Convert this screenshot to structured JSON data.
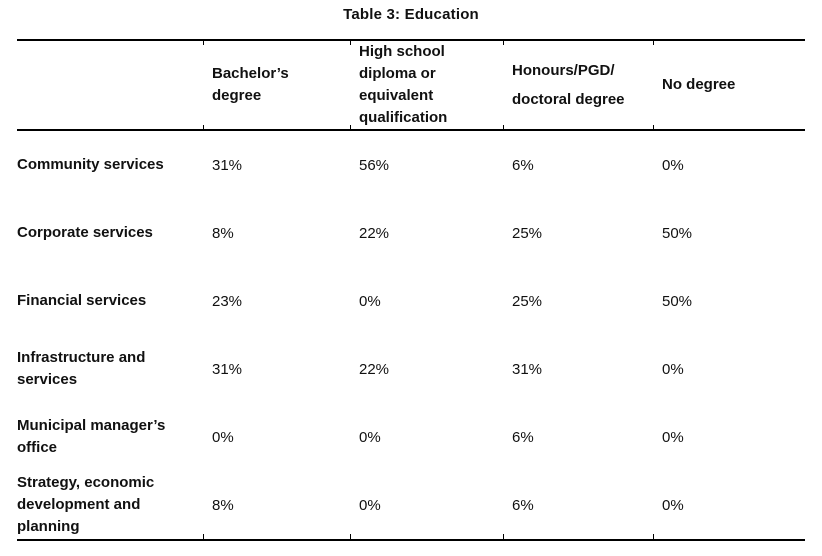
{
  "title": "Table 3: Education",
  "table": {
    "header": [
      {
        "id": "department",
        "lines": []
      },
      {
        "id": "bachelors-degree",
        "lines": [
          "Bachelor’s",
          "degree"
        ]
      },
      {
        "id": "high-school-diploma",
        "lines": [
          "High school",
          "diploma or",
          "equivalent",
          "qualification"
        ]
      },
      {
        "id": "honours-pgd-doctoral",
        "lines": [
          "Honours/PGD/",
          "doctoral degree"
        ]
      },
      {
        "id": "no-degree",
        "lines": [
          "No degree"
        ]
      }
    ],
    "rows": [
      {
        "label_lines": [
          "Community services"
        ],
        "values": [
          "31%",
          "56%",
          "6%",
          "0%"
        ]
      },
      {
        "label_lines": [
          "Corporate services"
        ],
        "values": [
          "8%",
          "22%",
          "25%",
          "50%"
        ]
      },
      {
        "label_lines": [
          "Financial services"
        ],
        "values": [
          "23%",
          "0%",
          "25%",
          "50%"
        ]
      },
      {
        "label_lines": [
          "Infrastructure and",
          "services"
        ],
        "values": [
          "31%",
          "22%",
          "31%",
          "0%"
        ]
      },
      {
        "label_lines": [
          "Municipal manager’s",
          "office"
        ],
        "values": [
          "0%",
          "0%",
          "6%",
          "0%"
        ]
      },
      {
        "label_lines": [
          "Strategy, economic",
          "development and",
          "planning"
        ],
        "values": [
          "8%",
          "0%",
          "6%",
          "0%"
        ]
      }
    ]
  }
}
